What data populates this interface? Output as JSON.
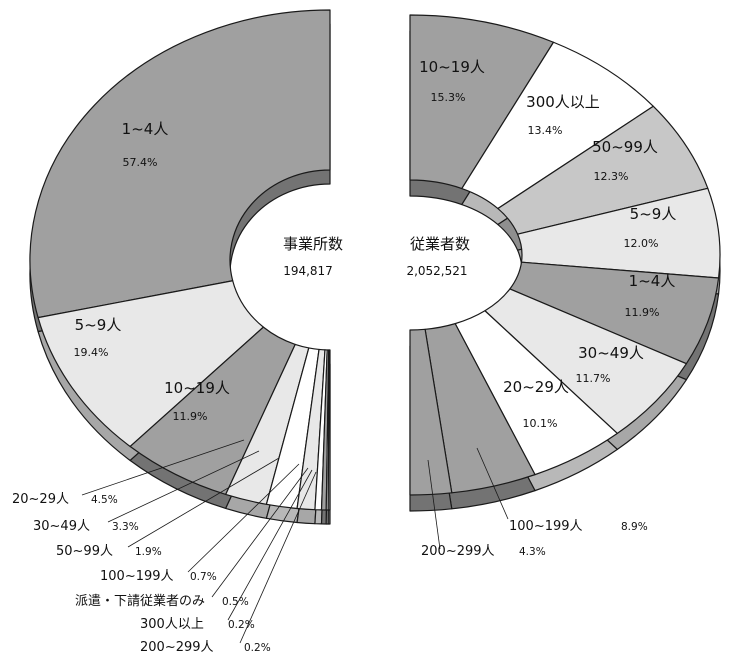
{
  "colors": {
    "dark": "#a0a0a0",
    "light": "#e8e8e8",
    "mid": "#c7c7c7",
    "white": "#ffffff",
    "stroke": "#1a1a1a"
  },
  "chart_data": [
    {
      "type": "pie",
      "title": "事業所数",
      "total": "194,817",
      "slices": [
        {
          "label": "1~4人",
          "pct": "57.4%",
          "value": 57.4,
          "color": "dark"
        },
        {
          "label": "5~9人",
          "pct": "19.4%",
          "value": 19.4,
          "color": "light"
        },
        {
          "label": "10~19人",
          "pct": "11.9%",
          "value": 11.9,
          "color": "dark"
        },
        {
          "label": "20~29人",
          "pct": "4.5%",
          "value": 4.5,
          "color": "light"
        },
        {
          "label": "30~49人",
          "pct": "3.3%",
          "value": 3.3,
          "color": "white"
        },
        {
          "label": "50~99人",
          "pct": "1.9%",
          "value": 1.9,
          "color": "light"
        },
        {
          "label": "100~199人",
          "pct": "0.7%",
          "value": 0.7,
          "color": "white"
        },
        {
          "label": "派遣・下請従業者のみ",
          "pct": "0.5%",
          "value": 0.5,
          "color": "dark"
        },
        {
          "label": "300人以上",
          "pct": "0.2%",
          "value": 0.2,
          "color": "white"
        },
        {
          "label": "200~299人",
          "pct": "0.2%",
          "value": 0.2,
          "color": "dark"
        }
      ]
    },
    {
      "type": "pie",
      "title": "従業者数",
      "total": "2,052,521",
      "slices": [
        {
          "label": "10~19人",
          "pct": "15.3%",
          "value": 15.3,
          "color": "dark"
        },
        {
          "label": "300人以上",
          "pct": "13.4%",
          "value": 13.4,
          "color": "white"
        },
        {
          "label": "50~99人",
          "pct": "12.3%",
          "value": 12.3,
          "color": "mid"
        },
        {
          "label": "5~9人",
          "pct": "12.0%",
          "value": 12.0,
          "color": "light"
        },
        {
          "label": "1~4人",
          "pct": "11.9%",
          "value": 11.9,
          "color": "dark"
        },
        {
          "label": "30~49人",
          "pct": "11.7%",
          "value": 11.7,
          "color": "light"
        },
        {
          "label": "20~29人",
          "pct": "10.1%",
          "value": 10.1,
          "color": "white"
        },
        {
          "label": "100~199人",
          "pct": "8.9%",
          "value": 8.9,
          "color": "dark"
        },
        {
          "label": "200~299人",
          "pct": "4.3%",
          "value": 4.3,
          "color": "dark"
        }
      ]
    }
  ]
}
